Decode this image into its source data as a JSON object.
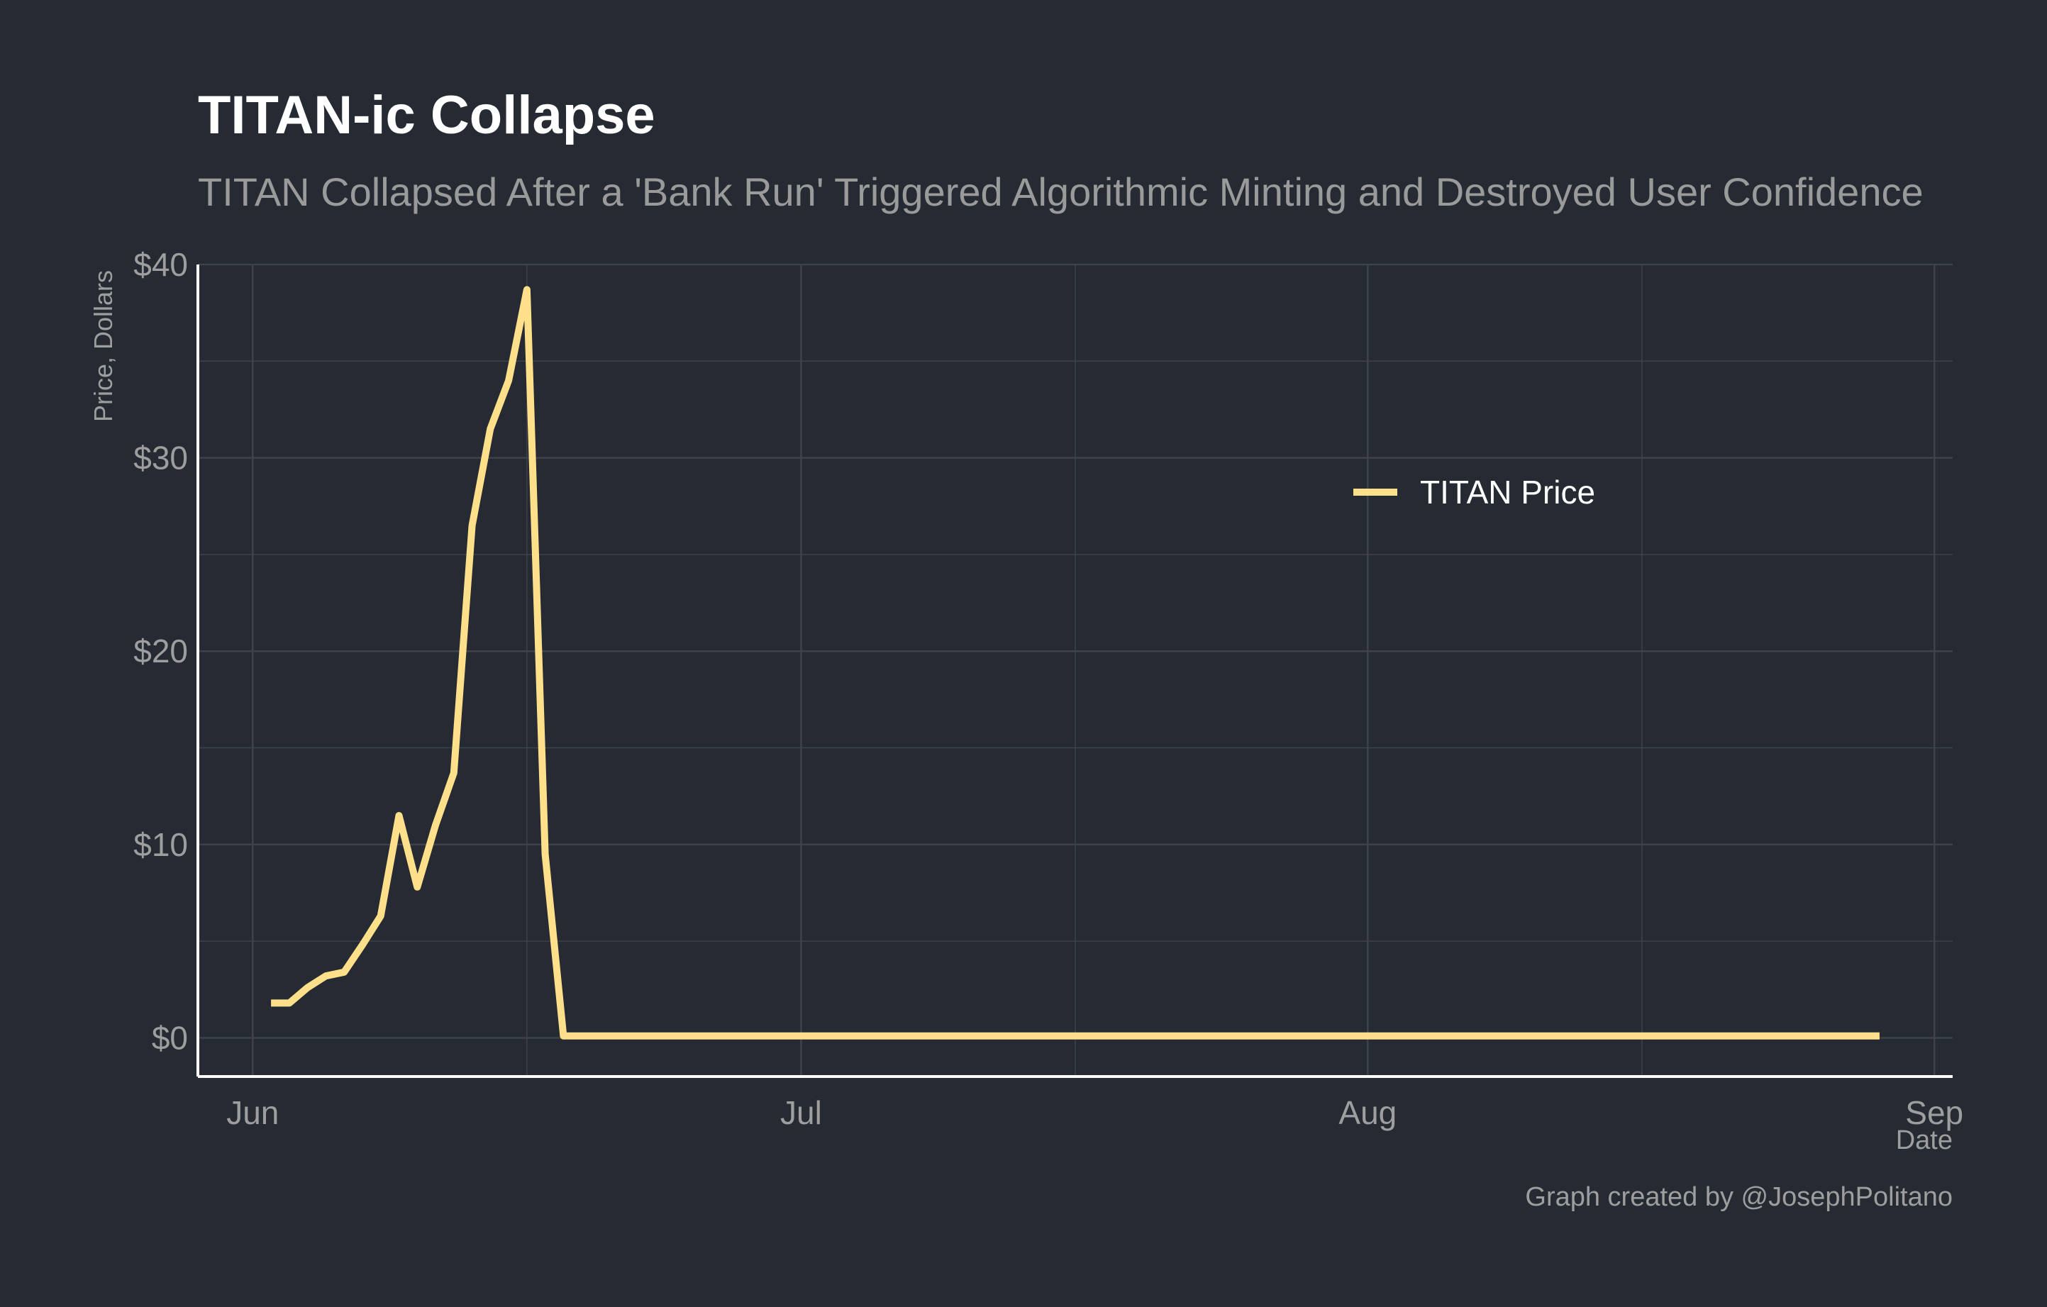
{
  "chart_data": {
    "type": "line",
    "title": "TITAN-ic Collapse",
    "subtitle": "TITAN Collapsed After a 'Bank Run' Triggered Algorithmic Minting and Destroyed User Confidence",
    "xlabel": "Date",
    "ylabel": "Price, Dollars",
    "caption": "Graph created by @JosephPolitano",
    "x_ticks": [
      "Jun",
      "Jul",
      "Aug",
      "Sep"
    ],
    "y_ticks": [
      "$0",
      "$10",
      "$20",
      "$30",
      "$40"
    ],
    "ylim": [
      -2,
      40
    ],
    "xlim": [
      "2021-05-29",
      "2021-09-02"
    ],
    "grid": true,
    "legend": "top-right",
    "colors": {
      "background": "#252a33",
      "line": "#ffe08a",
      "grid": "#3d424b",
      "axis": "#ffffff"
    },
    "series": [
      {
        "name": "TITAN Price",
        "x": [
          "2021-06-02",
          "2021-06-03",
          "2021-06-04",
          "2021-06-05",
          "2021-06-06",
          "2021-06-07",
          "2021-06-08",
          "2021-06-09",
          "2021-06-10",
          "2021-06-11",
          "2021-06-12",
          "2021-06-13",
          "2021-06-14",
          "2021-06-15",
          "2021-06-16",
          "2021-06-17",
          "2021-06-18",
          "2021-06-19",
          "2021-06-20",
          "2021-06-30",
          "2021-07-15",
          "2021-07-31",
          "2021-08-15",
          "2021-08-29"
        ],
        "values": [
          1.8,
          1.8,
          2.6,
          3.2,
          3.4,
          4.8,
          6.3,
          11.5,
          7.8,
          11.0,
          13.7,
          26.5,
          31.5,
          34.0,
          38.7,
          9.5,
          0.1,
          0.1,
          0.1,
          0.1,
          0.1,
          0.1,
          0.1,
          0.1
        ]
      }
    ]
  }
}
